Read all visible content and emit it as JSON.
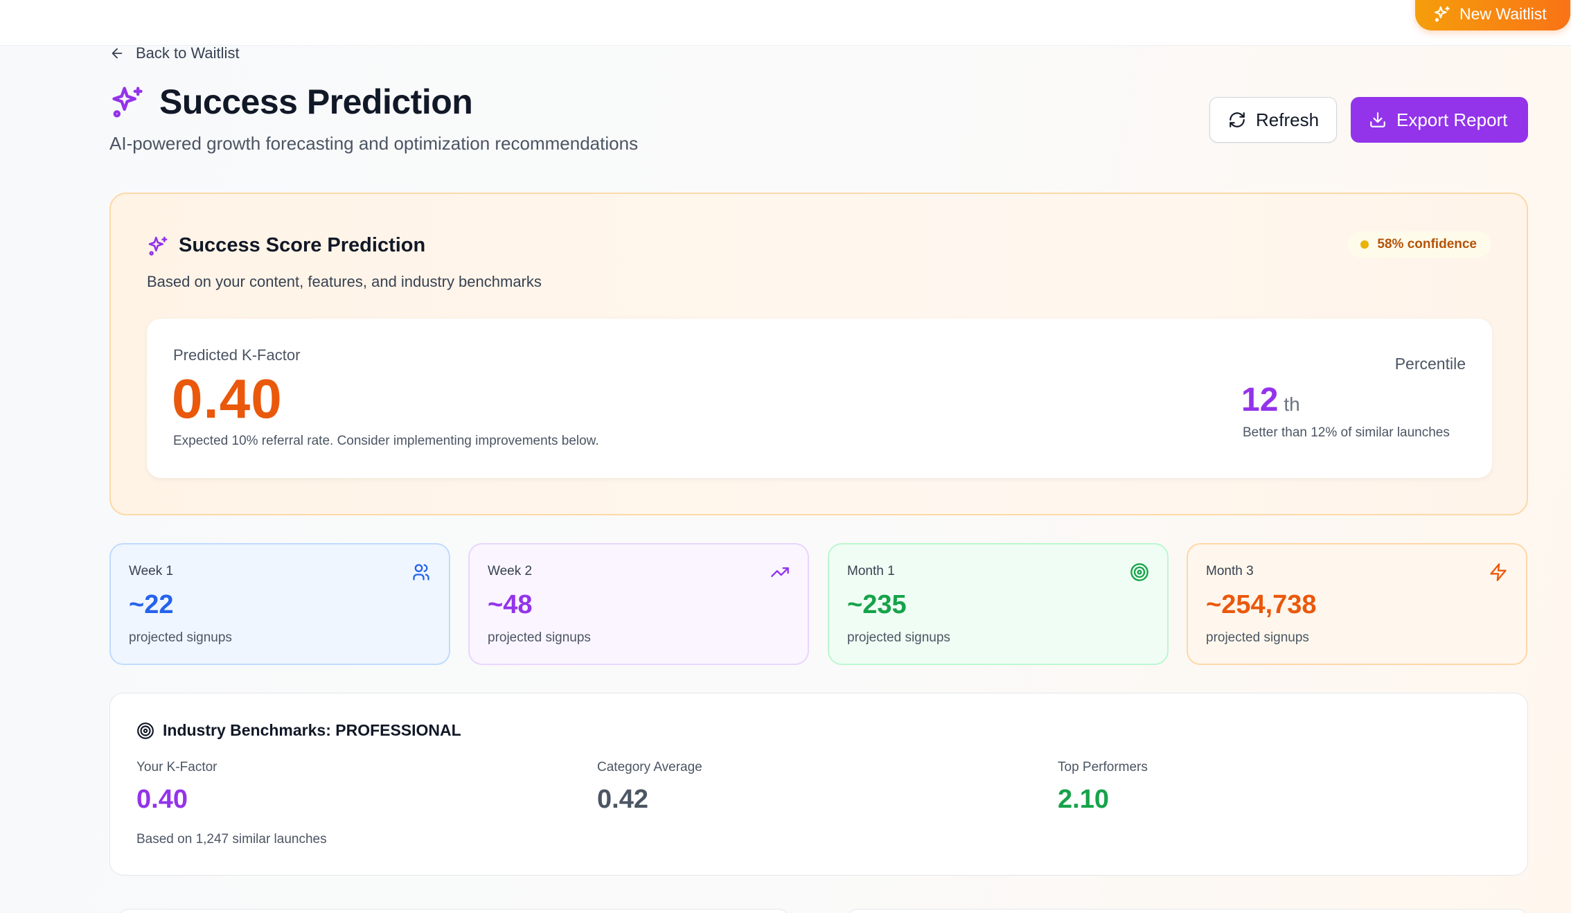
{
  "header": {
    "new_waitlist_label": "New Waitlist"
  },
  "nav": {
    "back_label": "Back to Waitlist"
  },
  "page": {
    "title": "Success Prediction",
    "subtitle": "AI-powered growth forecasting and optimization recommendations"
  },
  "actions": {
    "refresh_label": "Refresh",
    "export_label": "Export Report"
  },
  "score": {
    "title": "Success Score Prediction",
    "subtitle": "Based on your content, features, and industry benchmarks",
    "confidence": "58% confidence",
    "kfactor_label": "Predicted K-Factor",
    "kfactor_value": "0.40",
    "kfactor_desc": "Expected 10% referral rate. Consider implementing improvements below.",
    "percentile_label": "Percentile",
    "percentile_value": "12",
    "percentile_suffix": "th",
    "percentile_desc": "Better than 12% of similar launches"
  },
  "projections": [
    {
      "label": "Week 1",
      "value": "~22",
      "desc": "projected signups",
      "icon": "users-icon"
    },
    {
      "label": "Week 2",
      "value": "~48",
      "desc": "projected signups",
      "icon": "trending-up-icon"
    },
    {
      "label": "Month 1",
      "value": "~235",
      "desc": "projected signups",
      "icon": "target-icon"
    },
    {
      "label": "Month 3",
      "value": "~254,738",
      "desc": "projected signups",
      "icon": "lightning-icon"
    }
  ],
  "benchmarks": {
    "title": "Industry Benchmarks: PROFESSIONAL",
    "your_label": "Your K-Factor",
    "your_value": "0.40",
    "avg_label": "Category Average",
    "avg_value": "0.42",
    "top_label": "Top Performers",
    "top_value": "2.10",
    "note": "Based on 1,247 similar launches"
  },
  "colors": {
    "accent_purple": "#9333ea",
    "accent_orange": "#ea580c",
    "blue": "#2563eb",
    "green": "#16a34a"
  }
}
